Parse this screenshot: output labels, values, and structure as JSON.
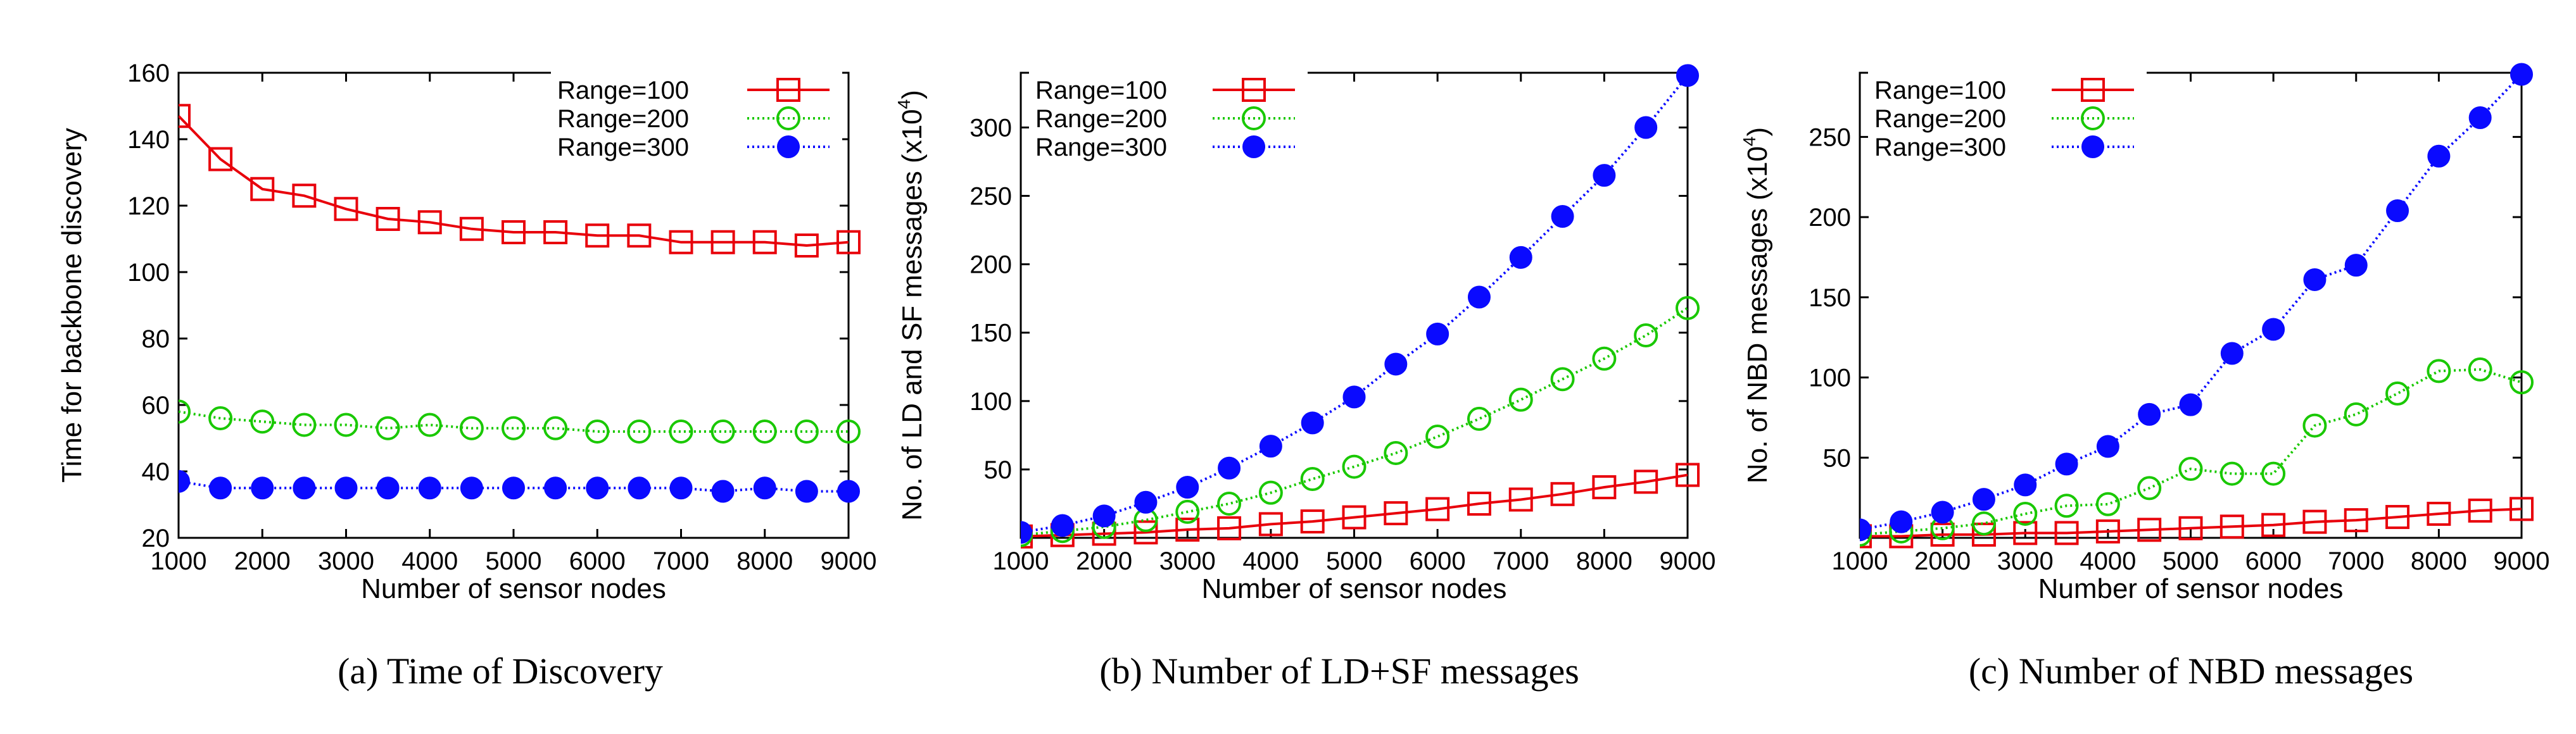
{
  "figure": {
    "colors": {
      "range100": "#e8000b",
      "range200": "#19c800",
      "range300": "#0a0aff"
    }
  },
  "chart_data": [
    {
      "type": "line",
      "caption": "(a) Time of Discovery",
      "xlabel": "Number of sensor nodes",
      "ylabel": "Time for backbone discovery",
      "ylabel_exp": "",
      "xlim": [
        1000,
        9000
      ],
      "ylim": [
        20,
        160
      ],
      "xticks": [
        1000,
        2000,
        3000,
        4000,
        5000,
        6000,
        7000,
        8000,
        9000
      ],
      "yticks": [
        20,
        40,
        60,
        80,
        100,
        120,
        140,
        160
      ],
      "legend_position": "top-right",
      "x": [
        1000,
        1500,
        2000,
        2500,
        3000,
        3500,
        4000,
        4500,
        5000,
        5500,
        6000,
        6500,
        7000,
        7500,
        8000,
        8500,
        9000
      ],
      "series": [
        {
          "name": "Range=100",
          "marker": "open-square",
          "color": "#e8000b",
          "dash": "solid",
          "values": [
            147,
            134,
            125,
            123,
            119,
            116,
            115,
            113,
            112,
            112,
            111,
            111,
            109,
            109,
            109,
            108,
            109
          ]
        },
        {
          "name": "Range=200",
          "marker": "open-circle",
          "color": "#19c800",
          "dash": "dotted",
          "values": [
            58,
            56,
            55,
            54,
            54,
            53,
            54,
            53,
            53,
            53,
            52,
            52,
            52,
            52,
            52,
            52,
            52
          ]
        },
        {
          "name": "Range=300",
          "marker": "filled-circle",
          "color": "#0a0aff",
          "dash": "dotted",
          "values": [
            37,
            35,
            35,
            35,
            35,
            35,
            35,
            35,
            35,
            35,
            35,
            35,
            35,
            34,
            35,
            34,
            34
          ]
        }
      ]
    },
    {
      "type": "line",
      "caption": "(b) Number of LD+SF messages",
      "xlabel": "Number of sensor nodes",
      "ylabel": "No. of LD and SF messages (x10",
      "ylabel_exp": "4",
      "ylabel_close": ")",
      "xlim": [
        1000,
        9000
      ],
      "ylim": [
        0,
        340
      ],
      "xticks": [
        1000,
        2000,
        3000,
        4000,
        5000,
        6000,
        7000,
        8000,
        9000
      ],
      "yticks": [
        50,
        100,
        150,
        200,
        250,
        300
      ],
      "legend_position": "top-left",
      "x": [
        1000,
        1500,
        2000,
        2500,
        3000,
        3500,
        4000,
        4500,
        5000,
        5500,
        6000,
        6500,
        7000,
        7500,
        8000,
        8500,
        9000
      ],
      "series": [
        {
          "name": "Range=100",
          "marker": "open-square",
          "color": "#e8000b",
          "dash": "solid",
          "values": [
            1,
            2,
            3,
            4,
            6,
            7,
            10,
            12,
            15,
            18,
            21,
            25,
            28,
            32,
            37,
            41,
            46
          ]
        },
        {
          "name": "Range=200",
          "marker": "open-circle",
          "color": "#19c800",
          "dash": "dotted",
          "values": [
            2,
            5,
            8,
            13,
            19,
            25,
            33,
            43,
            52,
            62,
            74,
            87,
            101,
            116,
            131,
            148,
            168
          ]
        },
        {
          "name": "Range=300",
          "marker": "filled-circle",
          "color": "#0a0aff",
          "dash": "dotted",
          "values": [
            4,
            9,
            16,
            26,
            37,
            51,
            67,
            84,
            103,
            127,
            149,
            176,
            205,
            235,
            265,
            300,
            338
          ]
        }
      ]
    },
    {
      "type": "line",
      "caption": "(c) Number of NBD messages",
      "xlabel": "Number of sensor nodes",
      "ylabel": "No. of NBD messages (x10",
      "ylabel_exp": "4",
      "ylabel_close": ")",
      "xlim": [
        1000,
        9000
      ],
      "ylim": [
        0,
        290
      ],
      "xticks": [
        1000,
        2000,
        3000,
        4000,
        5000,
        6000,
        7000,
        8000,
        9000
      ],
      "yticks": [
        50,
        100,
        150,
        200,
        250
      ],
      "legend_position": "top-left",
      "x": [
        1000,
        1500,
        2000,
        2500,
        3000,
        3500,
        4000,
        4500,
        5000,
        5500,
        6000,
        6500,
        7000,
        7500,
        8000,
        8500,
        9000
      ],
      "series": [
        {
          "name": "Range=100",
          "marker": "open-square",
          "color": "#e8000b",
          "dash": "solid",
          "values": [
            1,
            1,
            2,
            2,
            3,
            3,
            4,
            5,
            6,
            7,
            8,
            10,
            11,
            13,
            15,
            17,
            18
          ]
        },
        {
          "name": "Range=200",
          "marker": "open-circle",
          "color": "#19c800",
          "dash": "dotted",
          "values": [
            2,
            4,
            6,
            9,
            15,
            20,
            21,
            31,
            43,
            40,
            40,
            70,
            77,
            90,
            104,
            105,
            97
          ]
        },
        {
          "name": "Range=300",
          "marker": "filled-circle",
          "color": "#0a0aff",
          "dash": "dotted",
          "values": [
            5,
            10,
            16,
            24,
            33,
            46,
            57,
            77,
            83,
            115,
            130,
            161,
            170,
            204,
            238,
            262,
            289
          ]
        }
      ]
    }
  ]
}
